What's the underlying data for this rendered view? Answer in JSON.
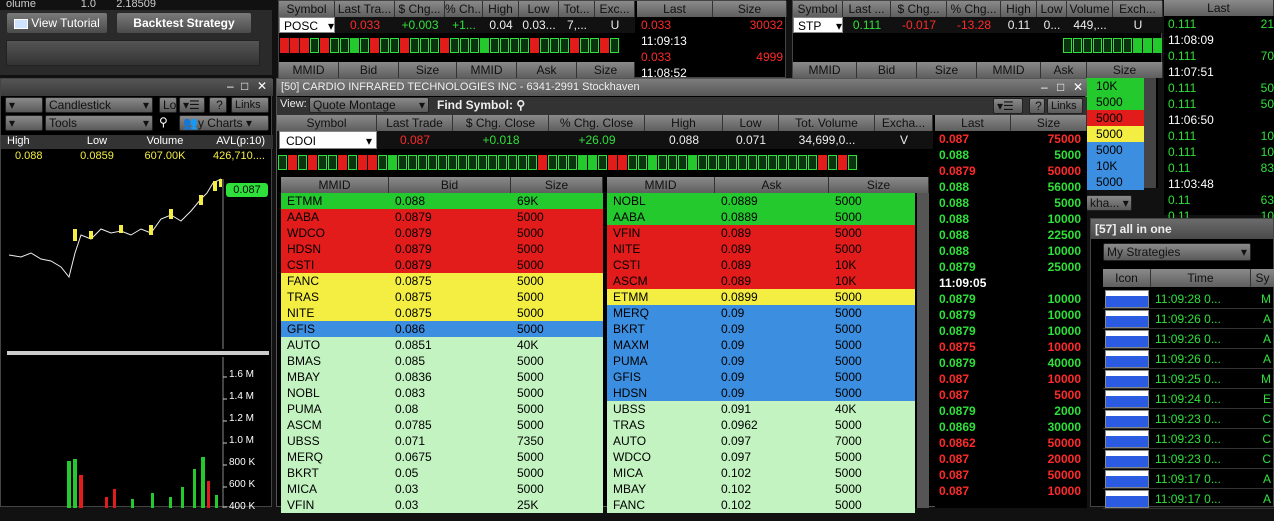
{
  "top_left": {
    "ticker_line": {
      "label": "olume",
      "val1": "1.0",
      "val2": "2.18509"
    },
    "view_tutorial": "View Tutorial",
    "backtest": "Backtest Strategy"
  },
  "chart_panel": {
    "chart_type": "Candlestick",
    "tools": "Tools",
    "links": "Links",
    "my_charts": "y Charts",
    "lc": "Lo",
    "help": "?",
    "headers": [
      "High",
      "Low",
      "Volume",
      "AVL(p:10)"
    ],
    "values": [
      "0.088",
      "0.0859",
      "607.00K",
      "426,710...."
    ],
    "price_tag": "0.087",
    "volume_labels": [
      "1.6 M",
      "1.4 M",
      "1.2 M",
      "1.0 M",
      "800 K",
      "600 K",
      "400 K"
    ]
  },
  "posc": {
    "headers": [
      "Symbol",
      "Last Tra...",
      "$ Chg...",
      "% Ch...",
      "High",
      "Low",
      "Tot...",
      "Exc..."
    ],
    "values": [
      "POSC",
      "0.033",
      "+0.003",
      "+1...",
      "0.04",
      "0.03...",
      "7,...",
      "U"
    ],
    "book_headers": [
      "MMID",
      "Bid",
      "Size",
      "MMID",
      "Ask",
      "Size"
    ],
    "ts_headers": [
      "Last",
      "Size"
    ],
    "ts": [
      {
        "p": "0.033",
        "s": "30032",
        "c": "red"
      },
      {
        "p": "11:09:13",
        "s": "",
        "c": "white"
      },
      {
        "p": "0.033",
        "s": "4999",
        "c": "red"
      },
      {
        "p": "11:08:52",
        "s": "",
        "c": "white"
      }
    ]
  },
  "stp": {
    "headers": [
      "Symbol",
      "Last ...",
      "$ Chg...",
      "% Chg...",
      "High",
      "Low",
      "Volume",
      "Exch..."
    ],
    "values": [
      "STP",
      "0.111",
      "-0.017",
      "-13.28",
      "0.11",
      "0...",
      "449,...",
      "U"
    ],
    "book_headers": [
      "MMID",
      "Bid",
      "Size",
      "MMID",
      "Ask",
      "Size"
    ],
    "ask_sizes": [
      {
        "v": "10K",
        "c": "green"
      },
      {
        "v": "5000",
        "c": "green"
      },
      {
        "v": "5000",
        "c": "red"
      },
      {
        "v": "5000",
        "c": "yellow"
      },
      {
        "v": "5000",
        "c": "blue"
      },
      {
        "v": "10K",
        "c": "blue"
      },
      {
        "v": "5000",
        "c": "blue"
      }
    ],
    "exch_select": "kha...",
    "ts_header": "Last",
    "ts": [
      {
        "p": "0.111",
        "s": "21",
        "c": "green"
      },
      {
        "p": "11:08:09",
        "s": "",
        "c": "white"
      },
      {
        "p": "0.111",
        "s": "70",
        "c": "green"
      },
      {
        "p": "11:07:51",
        "s": "",
        "c": "white"
      },
      {
        "p": "0.111",
        "s": "50",
        "c": "green"
      },
      {
        "p": "0.111",
        "s": "50",
        "c": "green"
      },
      {
        "p": "11:06:50",
        "s": "",
        "c": "white"
      },
      {
        "p": "0.111",
        "s": "10",
        "c": "green"
      },
      {
        "p": "0.111",
        "s": "10",
        "c": "green"
      },
      {
        "p": "0.11",
        "s": "83",
        "c": "green"
      },
      {
        "p": "11:03:48",
        "s": "",
        "c": "white"
      },
      {
        "p": "0.11",
        "s": "63",
        "c": "green"
      },
      {
        "p": "0.11",
        "s": "10",
        "c": "green"
      }
    ]
  },
  "montage": {
    "title": "[50] CARDIO INFRARED TECHNOLOGIES INC - 6341-2991 Stockhaven",
    "view_label": "View:",
    "view_value": "Quote Montage",
    "find_symbol": "Find Symbol:",
    "help": "?",
    "links": "Links",
    "headers": [
      "Symbol",
      "Last Trade",
      "$ Chg. Close",
      "% Chg. Close",
      "High",
      "Low",
      "Tot. Volume",
      "Excha..."
    ],
    "values": [
      "CDOI",
      "0.087",
      "+0.018",
      "+26.09",
      "0.088",
      "0.071",
      "34,699,0...",
      "V"
    ],
    "bid_headers": [
      "MMID",
      "Bid",
      "Size"
    ],
    "ask_headers": [
      "MMID",
      "Ask",
      "Size"
    ],
    "bids": [
      {
        "m": "ETMM",
        "p": "0.088",
        "s": "69K",
        "c": "green"
      },
      {
        "m": "AABA",
        "p": "0.0879",
        "s": "5000",
        "c": "red"
      },
      {
        "m": "WDCO",
        "p": "0.0879",
        "s": "5000",
        "c": "red"
      },
      {
        "m": "HDSN",
        "p": "0.0879",
        "s": "5000",
        "c": "red"
      },
      {
        "m": "CSTI",
        "p": "0.0879",
        "s": "5000",
        "c": "red"
      },
      {
        "m": "FANC",
        "p": "0.0875",
        "s": "5000",
        "c": "yellow"
      },
      {
        "m": "TRAS",
        "p": "0.0875",
        "s": "5000",
        "c": "yellow"
      },
      {
        "m": "NITE",
        "p": "0.0875",
        "s": "5000",
        "c": "yellow"
      },
      {
        "m": "GFIS",
        "p": "0.086",
        "s": "5000",
        "c": "blue"
      },
      {
        "m": "AUTO",
        "p": "0.0851",
        "s": "40K",
        "c": "light"
      },
      {
        "m": "BMAS",
        "p": "0.085",
        "s": "5000",
        "c": "light"
      },
      {
        "m": "MBAY",
        "p": "0.0836",
        "s": "5000",
        "c": "light"
      },
      {
        "m": "NOBL",
        "p": "0.083",
        "s": "5000",
        "c": "light"
      },
      {
        "m": "PUMA",
        "p": "0.08",
        "s": "5000",
        "c": "light"
      },
      {
        "m": "ASCM",
        "p": "0.0785",
        "s": "5000",
        "c": "light"
      },
      {
        "m": "UBSS",
        "p": "0.071",
        "s": "7350",
        "c": "light"
      },
      {
        "m": "MERQ",
        "p": "0.0675",
        "s": "5000",
        "c": "light"
      },
      {
        "m": "BKRT",
        "p": "0.05",
        "s": "5000",
        "c": "light"
      },
      {
        "m": "MICA",
        "p": "0.03",
        "s": "5000",
        "c": "light"
      },
      {
        "m": "VFIN",
        "p": "0.03",
        "s": "25K",
        "c": "light"
      }
    ],
    "asks": [
      {
        "m": "NOBL",
        "p": "0.0889",
        "s": "5000",
        "c": "green"
      },
      {
        "m": "AABA",
        "p": "0.0889",
        "s": "5000",
        "c": "green"
      },
      {
        "m": "VFIN",
        "p": "0.089",
        "s": "5000",
        "c": "red"
      },
      {
        "m": "NITE",
        "p": "0.089",
        "s": "5000",
        "c": "red"
      },
      {
        "m": "CSTI",
        "p": "0.089",
        "s": "10K",
        "c": "red"
      },
      {
        "m": "ASCM",
        "p": "0.089",
        "s": "10K",
        "c": "red"
      },
      {
        "m": "ETMM",
        "p": "0.0899",
        "s": "5000",
        "c": "yellow"
      },
      {
        "m": "MERQ",
        "p": "0.09",
        "s": "5000",
        "c": "blue"
      },
      {
        "m": "BKRT",
        "p": "0.09",
        "s": "5000",
        "c": "blue"
      },
      {
        "m": "MAXM",
        "p": "0.09",
        "s": "5000",
        "c": "blue"
      },
      {
        "m": "PUMA",
        "p": "0.09",
        "s": "5000",
        "c": "blue"
      },
      {
        "m": "GFIS",
        "p": "0.09",
        "s": "5000",
        "c": "blue"
      },
      {
        "m": "HDSN",
        "p": "0.09",
        "s": "5000",
        "c": "blue"
      },
      {
        "m": "UBSS",
        "p": "0.091",
        "s": "40K",
        "c": "light"
      },
      {
        "m": "TRAS",
        "p": "0.0962",
        "s": "5000",
        "c": "light"
      },
      {
        "m": "AUTO",
        "p": "0.097",
        "s": "7000",
        "c": "light"
      },
      {
        "m": "WDCO",
        "p": "0.097",
        "s": "5000",
        "c": "light"
      },
      {
        "m": "MICA",
        "p": "0.102",
        "s": "5000",
        "c": "light"
      },
      {
        "m": "MBAY",
        "p": "0.102",
        "s": "5000",
        "c": "light"
      },
      {
        "m": "FANC",
        "p": "0.102",
        "s": "5000",
        "c": "light"
      }
    ],
    "ts_headers": [
      "Last",
      "Size"
    ],
    "ts": [
      {
        "p": "0.087",
        "s": "75000",
        "c": "red"
      },
      {
        "p": "0.088",
        "s": "5000",
        "c": "green"
      },
      {
        "p": "0.0879",
        "s": "50000",
        "c": "red"
      },
      {
        "p": "0.088",
        "s": "56000",
        "c": "green"
      },
      {
        "p": "0.088",
        "s": "5000",
        "c": "green"
      },
      {
        "p": "0.088",
        "s": "10000",
        "c": "green"
      },
      {
        "p": "0.088",
        "s": "22500",
        "c": "green"
      },
      {
        "p": "0.088",
        "s": "10000",
        "c": "green"
      },
      {
        "p": "0.0879",
        "s": "25000",
        "c": "green"
      },
      {
        "p": "11:09:05",
        "s": "",
        "c": "white"
      },
      {
        "p": "0.0879",
        "s": "10000",
        "c": "green"
      },
      {
        "p": "0.0879",
        "s": "10000",
        "c": "green"
      },
      {
        "p": "0.0879",
        "s": "10000",
        "c": "green"
      },
      {
        "p": "0.0875",
        "s": "10000",
        "c": "red"
      },
      {
        "p": "0.0879",
        "s": "40000",
        "c": "green"
      },
      {
        "p": "0.087",
        "s": "10000",
        "c": "red"
      },
      {
        "p": "0.087",
        "s": "5000",
        "c": "red"
      },
      {
        "p": "0.0879",
        "s": "2000",
        "c": "green"
      },
      {
        "p": "0.0869",
        "s": "30000",
        "c": "green"
      },
      {
        "p": "0.0862",
        "s": "50000",
        "c": "red"
      },
      {
        "p": "0.087",
        "s": "20000",
        "c": "red"
      },
      {
        "p": "0.087",
        "s": "50000",
        "c": "red"
      },
      {
        "p": "0.087",
        "s": "10000",
        "c": "red"
      }
    ]
  },
  "strategies": {
    "title": "[57] all in one",
    "select": "My Strategies",
    "headers": [
      "Icon",
      "Time",
      "Sy"
    ],
    "rows": [
      {
        "t": "11:09:28 0...",
        "s": "M"
      },
      {
        "t": "11:09:26 0...",
        "s": "A"
      },
      {
        "t": "11:09:26 0...",
        "s": "A"
      },
      {
        "t": "11:09:26 0...",
        "s": "A"
      },
      {
        "t": "11:09:25 0...",
        "s": "M"
      },
      {
        "t": "11:09:24 0...",
        "s": "E"
      },
      {
        "t": "11:09:23 0...",
        "s": "C"
      },
      {
        "t": "11:09:23 0...",
        "s": "C"
      },
      {
        "t": "11:09:23 0...",
        "s": "C"
      },
      {
        "t": "11:09:17 0...",
        "s": "A"
      },
      {
        "t": "11:09:17 0...",
        "s": "A"
      }
    ]
  }
}
